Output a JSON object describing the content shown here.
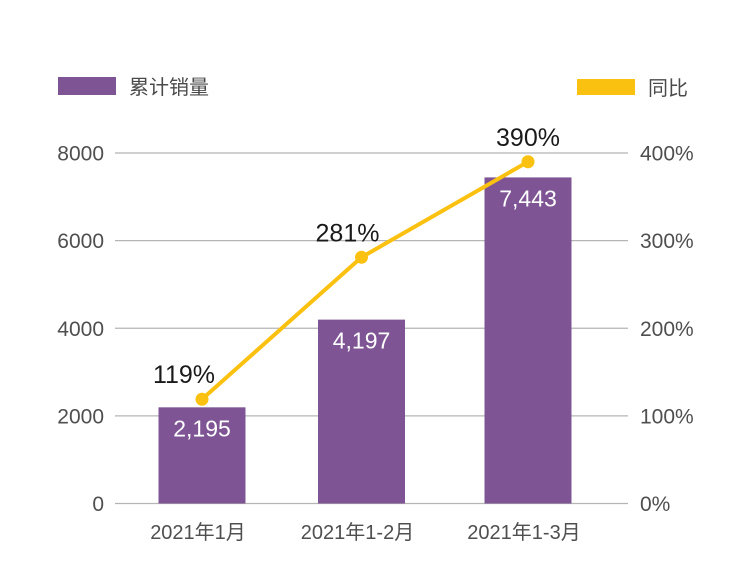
{
  "legend": {
    "bar": {
      "label": "累计销量"
    },
    "line": {
      "label": "同比"
    }
  },
  "colors": {
    "bar": "#7E5494",
    "line": "#FBC110",
    "grid": "#B5B5B5",
    "axis_text": "#4F4F4F",
    "data_label": "#1A1A1A",
    "bar_label": "#FFFFFF",
    "background": "#FFFFFF"
  },
  "chart_data": {
    "type": "combo-bar-line",
    "categories": [
      "2021年1月",
      "2021年1-2月",
      "2021年1-3月"
    ],
    "series": [
      {
        "name": "累计销量",
        "type": "bar",
        "axis": "left",
        "values": [
          2195,
          4197,
          7443
        ],
        "data_labels": [
          "2,195",
          "4,197",
          "7,443"
        ]
      },
      {
        "name": "同比",
        "type": "line",
        "axis": "right",
        "values": [
          119,
          281,
          390
        ],
        "data_labels": [
          "119%",
          "281%",
          "390%"
        ]
      }
    ],
    "left_axis": {
      "min": 0,
      "max": 8000,
      "ticks": [
        0,
        2000,
        4000,
        6000,
        8000
      ],
      "tick_labels": [
        "0",
        "2000",
        "4000",
        "6000",
        "8000"
      ]
    },
    "right_axis": {
      "min": 0,
      "max": 400,
      "ticks": [
        0,
        100,
        200,
        300,
        400
      ],
      "tick_labels": [
        "0%",
        "100%",
        "200%",
        "300%",
        "400%"
      ]
    },
    "grid": true,
    "legend_position": "top"
  }
}
